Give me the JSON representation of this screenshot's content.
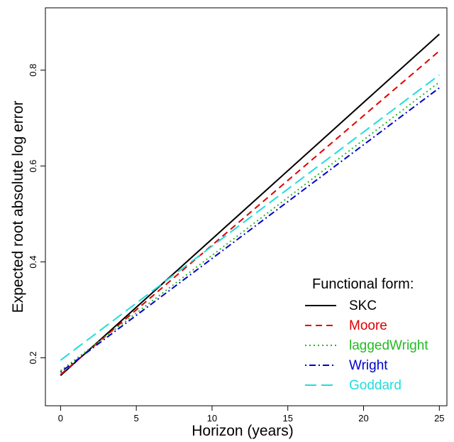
{
  "chart_data": {
    "type": "line",
    "title": "",
    "xlabel": "Horizon (years)",
    "ylabel": "Expected root absolute log error",
    "xlim": [
      -1,
      25.5
    ],
    "ylim": [
      0.1,
      0.93
    ],
    "x_ticks": [
      0,
      5,
      10,
      15,
      20,
      25
    ],
    "y_ticks": [
      0.2,
      0.4,
      0.6,
      0.8
    ],
    "grid": false,
    "legend_title": "Functional form:",
    "legend_position": "bottom-right",
    "series": [
      {
        "name": "SKC",
        "color": "#000000",
        "dash": "solid",
        "x": [
          0,
          25
        ],
        "y": [
          0.163,
          0.875
        ]
      },
      {
        "name": "Moore",
        "color": "#df0000",
        "dash": "dashed",
        "x": [
          0,
          25
        ],
        "y": [
          0.165,
          0.84
        ]
      },
      {
        "name": "laggedWright",
        "color": "#22bb22",
        "dash": "dotted",
        "x": [
          0,
          25
        ],
        "y": [
          0.173,
          0.775
        ]
      },
      {
        "name": "Wright",
        "color": "#0000cc",
        "dash": "dotdash",
        "x": [
          0,
          25
        ],
        "y": [
          0.17,
          0.763
        ]
      },
      {
        "name": "Goddard",
        "color": "#22dddd",
        "dash": "longdash",
        "x": [
          0,
          25
        ],
        "y": [
          0.195,
          0.79
        ]
      }
    ]
  }
}
